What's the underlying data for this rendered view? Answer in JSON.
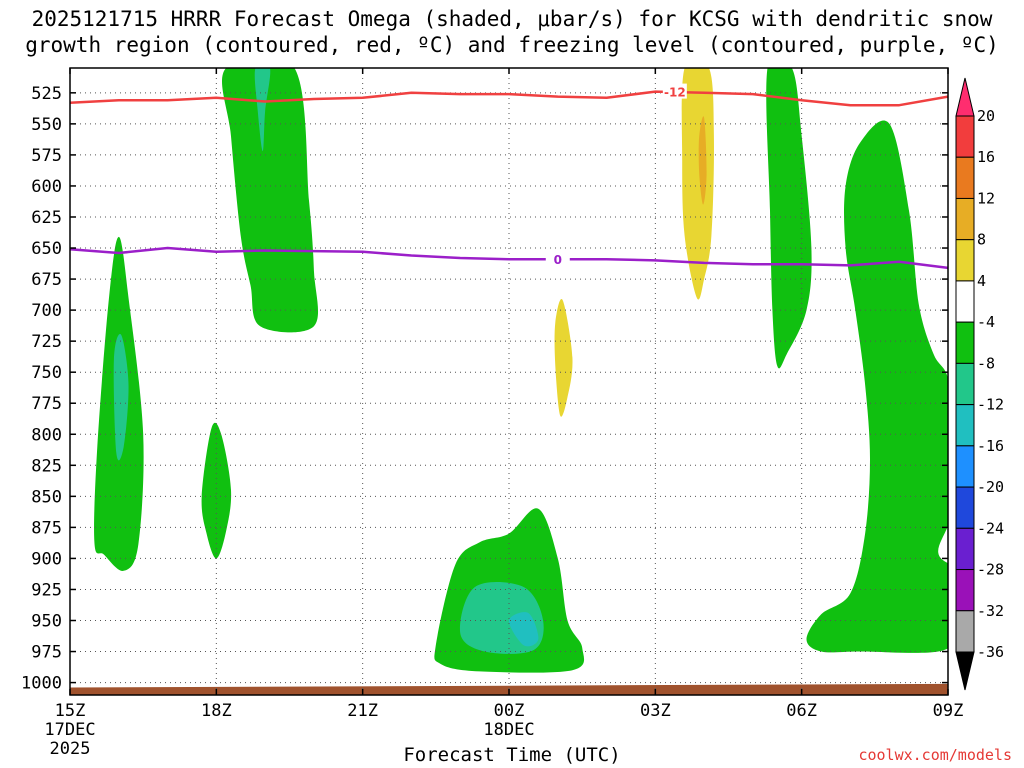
{
  "title_line1": "2025121715 HRRR Forecast Omega (shaded, μbar/s) for KCSG with dendritic snow",
  "title_line2": "growth region (contoured, red, ºC) and freezing level (contoured, purple, ºC)",
  "credit": "coolwx.com/models",
  "chart_data": {
    "type": "contour",
    "title": "2025121715 HRRR Forecast Omega (shaded, μbar/s) for KCSG with dendritic snow growth region (contoured, red, ºC) and freezing level (contoured, purple, ºC)",
    "xlabel": "Forecast Time (UTC)",
    "ylabel": "",
    "grid": true,
    "y_axis": {
      "inverted": true,
      "range": [
        1010,
        505
      ],
      "tick_labels": [
        "525",
        "550",
        "575",
        "600",
        "625",
        "650",
        "675",
        "700",
        "725",
        "750",
        "775",
        "800",
        "825",
        "850",
        "875",
        "900",
        "925",
        "950",
        "975",
        "1000"
      ]
    },
    "x_axis": {
      "range_hours": [
        0,
        18
      ],
      "ticks": [
        {
          "hour": 0,
          "label": "15Z",
          "sub1": "17DEC",
          "sub2": "2025"
        },
        {
          "hour": 3,
          "label": "18Z",
          "sub1": "",
          "sub2": ""
        },
        {
          "hour": 6,
          "label": "21Z",
          "sub1": "",
          "sub2": ""
        },
        {
          "hour": 9,
          "label": "00Z",
          "sub1": "18DEC",
          "sub2": ""
        },
        {
          "hour": 12,
          "label": "03Z",
          "sub1": "",
          "sub2": ""
        },
        {
          "hour": 15,
          "label": "06Z",
          "sub1": "",
          "sub2": ""
        },
        {
          "hour": 18,
          "label": "09Z",
          "sub1": "",
          "sub2": ""
        }
      ]
    },
    "colorbar": {
      "levels": [
        "20",
        "16",
        "12",
        "8",
        "4",
        "-4",
        "-8",
        "-12",
        "-16",
        "-20",
        "-24",
        "-28",
        "-32",
        "-36"
      ],
      "colors": [
        "#ff2d6f",
        "#f23d3d",
        "#e97a1f",
        "#e7ad25",
        "#e8d632",
        "#ffffff",
        "#10c010",
        "#22c78a",
        "#20bfc0",
        "#1e90ff",
        "#1f48dc",
        "#6a1fd0",
        "#9a11b8",
        "#a9a9a9",
        "#000000"
      ]
    },
    "freezing_level": {
      "label": "0",
      "color": "#9b1fc9",
      "points": [
        [
          0,
          651
        ],
        [
          1,
          654
        ],
        [
          2,
          650
        ],
        [
          3,
          653
        ],
        [
          4,
          652
        ],
        [
          6,
          653
        ],
        [
          7,
          656
        ],
        [
          8,
          658
        ],
        [
          9,
          659
        ],
        [
          11,
          659
        ],
        [
          12,
          660
        ],
        [
          13,
          662
        ],
        [
          14,
          663
        ],
        [
          15,
          663
        ],
        [
          16,
          664
        ],
        [
          17,
          661
        ],
        [
          18,
          666
        ]
      ]
    },
    "dgz_isotherm": {
      "label": "-12",
      "color": "#f04040",
      "points": [
        [
          0,
          533
        ],
        [
          1,
          531
        ],
        [
          2,
          531
        ],
        [
          3,
          529
        ],
        [
          4,
          532
        ],
        [
          5,
          530
        ],
        [
          6,
          529
        ],
        [
          7,
          525
        ],
        [
          8,
          526
        ],
        [
          9,
          526
        ],
        [
          10,
          528
        ],
        [
          11,
          529
        ],
        [
          12,
          524
        ],
        [
          13,
          525
        ],
        [
          14,
          526
        ],
        [
          15,
          531
        ],
        [
          16,
          535
        ],
        [
          17,
          535
        ],
        [
          18,
          528
        ]
      ]
    },
    "omega_regions": [
      {
        "level": "-4",
        "color": "#10c010",
        "points": [
          [
            0.5,
            887
          ],
          [
            0.56,
            810
          ],
          [
            0.8,
            690
          ],
          [
            1.0,
            641
          ],
          [
            1.2,
            690
          ],
          [
            1.5,
            800
          ],
          [
            1.4,
            889
          ],
          [
            1.1,
            910
          ],
          [
            0.7,
            897
          ]
        ]
      },
      {
        "level": "-8",
        "color": "#22c78a",
        "points": [
          [
            0.9,
            740
          ],
          [
            1.05,
            720
          ],
          [
            1.2,
            760
          ],
          [
            1.1,
            810
          ],
          [
            0.95,
            815
          ]
        ]
      },
      {
        "level": "-4",
        "color": "#10c010",
        "points": [
          [
            3.2,
            505
          ],
          [
            4.6,
            505
          ],
          [
            4.9,
            612
          ],
          [
            5.0,
            668
          ],
          [
            5.0,
            713
          ],
          [
            3.9,
            713
          ],
          [
            3.7,
            680
          ],
          [
            3.5,
            640
          ],
          [
            3.3,
            560
          ]
        ]
      },
      {
        "level": "-8",
        "color": "#22c78a",
        "points": [
          [
            3.8,
            505
          ],
          [
            4.1,
            505
          ],
          [
            4.0,
            540
          ],
          [
            3.95,
            572
          ],
          [
            3.85,
            540
          ]
        ]
      },
      {
        "level": "-4",
        "color": "#10c010",
        "points": [
          [
            2.7,
            850
          ],
          [
            2.9,
            795
          ],
          [
            3.1,
            800
          ],
          [
            3.3,
            845
          ],
          [
            3.2,
            878
          ],
          [
            3.0,
            900
          ],
          [
            2.8,
            880
          ]
        ]
      },
      {
        "level": "-4",
        "color": "#10c010",
        "points": [
          [
            7.5,
            970
          ],
          [
            7.9,
            905
          ],
          [
            8.4,
            887
          ],
          [
            9.0,
            880
          ],
          [
            9.6,
            860
          ],
          [
            10.0,
            900
          ],
          [
            10.2,
            950
          ],
          [
            10.5,
            972
          ],
          [
            10.3,
            990
          ],
          [
            8.4,
            991
          ],
          [
            7.6,
            985
          ]
        ]
      },
      {
        "level": "-8",
        "color": "#22c78a",
        "points": [
          [
            8.0,
            960
          ],
          [
            8.3,
            923
          ],
          [
            9.3,
            923
          ],
          [
            9.7,
            950
          ],
          [
            9.5,
            974
          ],
          [
            8.5,
            975
          ]
        ]
      },
      {
        "level": "-12",
        "color": "#20bfc0",
        "points": [
          [
            9.0,
            950
          ],
          [
            9.4,
            944
          ],
          [
            9.6,
            965
          ],
          [
            9.3,
            970
          ]
        ]
      },
      {
        "level": "4",
        "color": "#e8d632",
        "points": [
          [
            9.95,
            710
          ],
          [
            10.1,
            692
          ],
          [
            10.3,
            738
          ],
          [
            10.2,
            770
          ],
          [
            10.05,
            785
          ],
          [
            9.95,
            745
          ]
        ]
      },
      {
        "level": "4",
        "color": "#e8d632",
        "points": [
          [
            12.6,
            505
          ],
          [
            13.1,
            505
          ],
          [
            13.2,
            560
          ],
          [
            13.15,
            640
          ],
          [
            13.0,
            675
          ],
          [
            12.85,
            690
          ],
          [
            12.6,
            640
          ],
          [
            12.55,
            580
          ]
        ]
      },
      {
        "level": "8",
        "color": "#e7ad25",
        "points": [
          [
            12.9,
            560
          ],
          [
            13.0,
            545
          ],
          [
            13.05,
            590
          ],
          [
            12.98,
            615
          ],
          [
            12.9,
            590
          ]
        ]
      },
      {
        "level": "-4",
        "color": "#10c010",
        "points": [
          [
            14.3,
            505
          ],
          [
            14.8,
            505
          ],
          [
            15.0,
            560
          ],
          [
            15.2,
            650
          ],
          [
            15.1,
            700
          ],
          [
            14.7,
            735
          ],
          [
            14.5,
            745
          ],
          [
            14.4,
            700
          ],
          [
            14.35,
            620
          ]
        ]
      },
      {
        "level": "-4",
        "color": "#10c010",
        "points": [
          [
            15.9,
            600
          ],
          [
            16.2,
            565
          ],
          [
            16.8,
            550
          ],
          [
            17.2,
            620
          ],
          [
            17.4,
            695
          ],
          [
            17.7,
            735
          ],
          [
            18.0,
            755
          ],
          [
            18.1,
            800
          ],
          [
            18.1,
            860
          ],
          [
            17.8,
            895
          ],
          [
            18.2,
            910
          ],
          [
            18.4,
            935
          ],
          [
            18.1,
            950
          ],
          [
            18.3,
            960
          ],
          [
            17.8,
            975
          ],
          [
            16.2,
            975
          ],
          [
            15.4,
            975
          ],
          [
            15.1,
            965
          ],
          [
            15.4,
            945
          ],
          [
            16.0,
            928
          ],
          [
            16.3,
            880
          ],
          [
            16.4,
            820
          ],
          [
            16.3,
            760
          ],
          [
            16.1,
            700
          ],
          [
            15.9,
            650
          ]
        ]
      }
    ],
    "ground": {
      "color": "#a0522d",
      "top_left_hpa": 1004,
      "top_right_hpa": 1001
    }
  }
}
